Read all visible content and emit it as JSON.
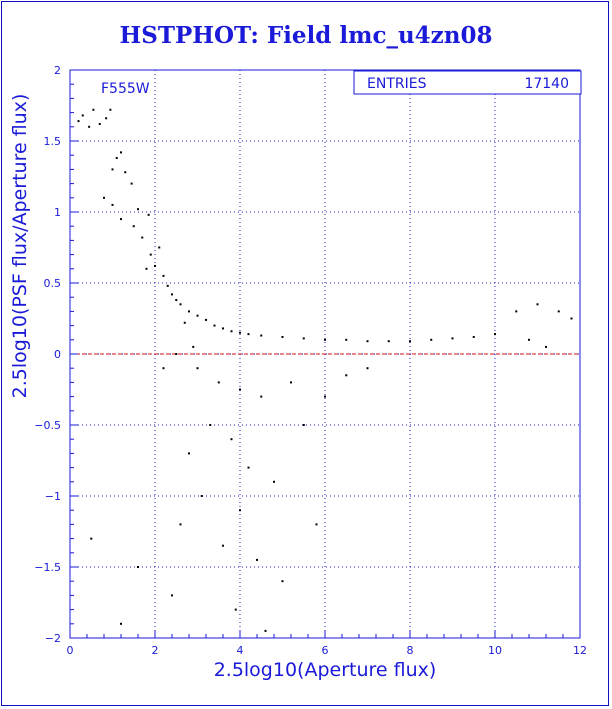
{
  "chart_data": {
    "type": "scatter",
    "title": "HSTPHOT: Field lmc_u4zn08",
    "xlabel": "2.5log10(Aperture flux)",
    "ylabel": "2.5log10(PSF flux/Aperture flux)",
    "xlim": [
      0,
      12
    ],
    "ylim": [
      -2,
      2
    ],
    "x_ticks": [
      0,
      2,
      4,
      6,
      8,
      10,
      12
    ],
    "y_ticks": [
      2,
      1.5,
      1,
      0.5,
      0,
      -0.5,
      -1,
      -1.5,
      -2
    ],
    "x_tick_labels": [
      "0",
      "2",
      "4",
      "6",
      "8",
      "10",
      "12"
    ],
    "y_tick_labels": [
      "2",
      "1.5",
      "1",
      "0.5",
      "0",
      "−0.5",
      "−1",
      "−1.5",
      "−2"
    ],
    "grid": true,
    "reference_line": {
      "y": 0,
      "color": "#d01010",
      "style": "dashed"
    },
    "filter_label": "F555W",
    "stats_box": {
      "label": "ENTRIES",
      "value": "17140"
    },
    "series": [
      {
        "color": "#000000",
        "points": [
          [
            0.3,
            1.68
          ],
          [
            0.55,
            1.72
          ],
          [
            0.7,
            1.62
          ],
          [
            0.85,
            1.66
          ],
          [
            0.45,
            1.6
          ],
          [
            0.95,
            1.72
          ],
          [
            0.2,
            1.64
          ],
          [
            1.1,
            1.38
          ],
          [
            1.2,
            1.42
          ],
          [
            1.0,
            1.3
          ],
          [
            1.3,
            1.28
          ],
          [
            1.45,
            1.2
          ],
          [
            0.8,
            1.1
          ],
          [
            1.0,
            1.05
          ],
          [
            1.2,
            0.95
          ],
          [
            1.5,
            0.9
          ],
          [
            1.7,
            0.82
          ],
          [
            1.85,
            0.98
          ],
          [
            1.6,
            1.02
          ],
          [
            1.9,
            0.7
          ],
          [
            2.0,
            0.62
          ],
          [
            2.1,
            0.75
          ],
          [
            2.2,
            0.55
          ],
          [
            2.3,
            0.48
          ],
          [
            1.8,
            0.6
          ],
          [
            2.4,
            0.42
          ],
          [
            2.5,
            0.38
          ],
          [
            2.6,
            0.35
          ],
          [
            2.8,
            0.3
          ],
          [
            3.0,
            0.27
          ],
          [
            2.7,
            0.22
          ],
          [
            3.2,
            0.24
          ],
          [
            3.4,
            0.2
          ],
          [
            3.6,
            0.18
          ],
          [
            3.8,
            0.16
          ],
          [
            4.0,
            0.15
          ],
          [
            4.2,
            0.14
          ],
          [
            4.5,
            0.13
          ],
          [
            5.0,
            0.12
          ],
          [
            5.5,
            0.11
          ],
          [
            6.0,
            0.1
          ],
          [
            6.5,
            0.1
          ],
          [
            7.0,
            0.09
          ],
          [
            7.5,
            0.09
          ],
          [
            8.0,
            0.09
          ],
          [
            8.5,
            0.1
          ],
          [
            9.0,
            0.11
          ],
          [
            9.5,
            0.12
          ],
          [
            10.0,
            0.14
          ],
          [
            10.5,
            0.3
          ],
          [
            11.0,
            0.35
          ],
          [
            11.5,
            0.3
          ],
          [
            11.8,
            0.25
          ],
          [
            11.2,
            0.05
          ],
          [
            10.8,
            0.1
          ],
          [
            3.0,
            -0.1
          ],
          [
            3.5,
            -0.2
          ],
          [
            4.0,
            -0.25
          ],
          [
            4.5,
            -0.3
          ],
          [
            3.3,
            -0.5
          ],
          [
            3.8,
            -0.6
          ],
          [
            2.8,
            -0.7
          ],
          [
            4.2,
            -0.8
          ],
          [
            4.8,
            -0.9
          ],
          [
            3.1,
            -1.0
          ],
          [
            4.0,
            -1.1
          ],
          [
            2.6,
            -1.2
          ],
          [
            3.6,
            -1.35
          ],
          [
            4.4,
            -1.45
          ],
          [
            5.0,
            -1.6
          ],
          [
            2.4,
            -1.7
          ],
          [
            3.9,
            -1.8
          ],
          [
            1.6,
            -1.5
          ],
          [
            1.2,
            -1.9
          ],
          [
            0.5,
            -1.3
          ],
          [
            5.5,
            -0.5
          ],
          [
            6.0,
            -0.3
          ],
          [
            5.2,
            -0.2
          ],
          [
            6.5,
            -0.15
          ],
          [
            7.0,
            -0.1
          ],
          [
            5.8,
            -1.2
          ],
          [
            4.6,
            -1.95
          ],
          [
            2.2,
            -0.1
          ],
          [
            2.5,
            0.0
          ],
          [
            2.9,
            0.05
          ]
        ]
      }
    ]
  }
}
